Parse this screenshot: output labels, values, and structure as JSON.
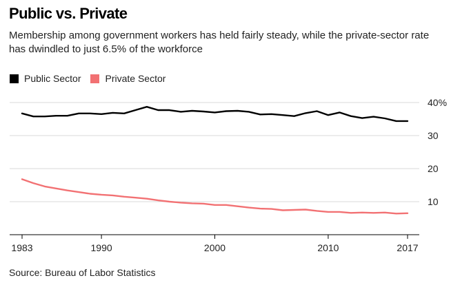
{
  "header": {
    "title": "Public vs. Private",
    "subtitle": "Membership among government workers has held fairly steady, while the private-sector rate has dwindled to just 6.5% of the workforce"
  },
  "source": "Source: Bureau of Labor Statistics",
  "colors": {
    "public": "#000000",
    "private": "#f27173",
    "grid": "#d9d9d9",
    "axis": "#000000"
  },
  "chart_data": {
    "type": "line",
    "title": "Public vs. Private",
    "xlabel": "",
    "ylabel": "",
    "xlim": [
      1983,
      2017
    ],
    "ylim": [
      0,
      40
    ],
    "y_ticks": [
      10,
      20,
      30,
      40
    ],
    "y_tick_labels": [
      "10",
      "20",
      "30",
      "40%"
    ],
    "x_ticks": [
      1983,
      1990,
      2000,
      2010,
      2017
    ],
    "x_tick_labels": [
      "1983",
      "1990",
      "2000",
      "2010",
      "2017"
    ],
    "grid": true,
    "legend": "top-left",
    "x": [
      1983,
      1984,
      1985,
      1986,
      1987,
      1988,
      1989,
      1990,
      1991,
      1992,
      1993,
      1994,
      1995,
      1996,
      1997,
      1998,
      1999,
      2000,
      2001,
      2002,
      2003,
      2004,
      2005,
      2006,
      2007,
      2008,
      2009,
      2010,
      2011,
      2012,
      2013,
      2014,
      2015,
      2016,
      2017
    ],
    "series": [
      {
        "name": "Public Sector",
        "values": [
          36.7,
          35.8,
          35.8,
          36.0,
          36.0,
          36.7,
          36.7,
          36.5,
          36.9,
          36.7,
          37.7,
          38.7,
          37.7,
          37.7,
          37.2,
          37.5,
          37.3,
          37.0,
          37.4,
          37.5,
          37.2,
          36.4,
          36.5,
          36.2,
          35.9,
          36.8,
          37.4,
          36.2,
          37.0,
          35.9,
          35.3,
          35.7,
          35.2,
          34.4,
          34.4
        ]
      },
      {
        "name": "Private Sector",
        "values": [
          16.8,
          15.6,
          14.6,
          14.0,
          13.4,
          12.9,
          12.4,
          12.1,
          11.9,
          11.5,
          11.2,
          10.9,
          10.4,
          10.0,
          9.7,
          9.5,
          9.4,
          9.0,
          9.0,
          8.6,
          8.2,
          7.9,
          7.8,
          7.4,
          7.5,
          7.6,
          7.2,
          6.9,
          6.9,
          6.6,
          6.7,
          6.6,
          6.7,
          6.4,
          6.5
        ]
      }
    ]
  }
}
